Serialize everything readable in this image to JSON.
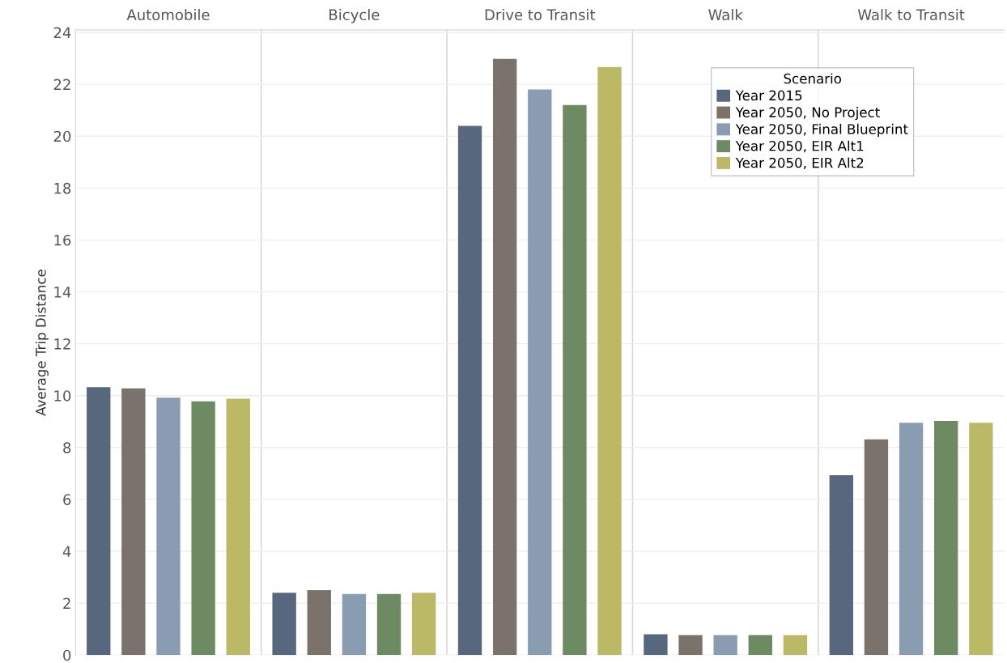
{
  "chart_data": {
    "type": "bar",
    "ylabel": "Average Trip Distance",
    "legend_title": "Scenario",
    "categories": [
      "Automobile",
      "Bicycle",
      "Drive to Transit",
      "Walk",
      "Walk to Transit"
    ],
    "series": [
      {
        "name": "Year 2015",
        "color": "#57677d",
        "values": [
          10.33,
          2.4,
          20.4,
          0.8,
          6.93
        ]
      },
      {
        "name": "Year 2050, No Project",
        "color": "#7b726b",
        "values": [
          10.28,
          2.5,
          22.98,
          0.77,
          8.31
        ]
      },
      {
        "name": "Year 2050, Final Blueprint",
        "color": "#8a9cb1",
        "values": [
          9.92,
          2.35,
          21.8,
          0.77,
          8.95
        ]
      },
      {
        "name": "Year 2050, EIR Alt1",
        "color": "#6e8a63",
        "values": [
          9.78,
          2.35,
          21.2,
          0.77,
          9.02
        ]
      },
      {
        "name": "Year 2050, EIR Alt2",
        "color": "#bcb966",
        "values": [
          9.88,
          2.4,
          22.67,
          0.77,
          8.95
        ]
      }
    ],
    "ylim": [
      0,
      24.1
    ],
    "yticks": [
      0,
      2,
      4,
      6,
      8,
      10,
      12,
      14,
      16,
      18,
      20,
      22,
      24
    ],
    "grid": "y",
    "legend": "top right"
  }
}
